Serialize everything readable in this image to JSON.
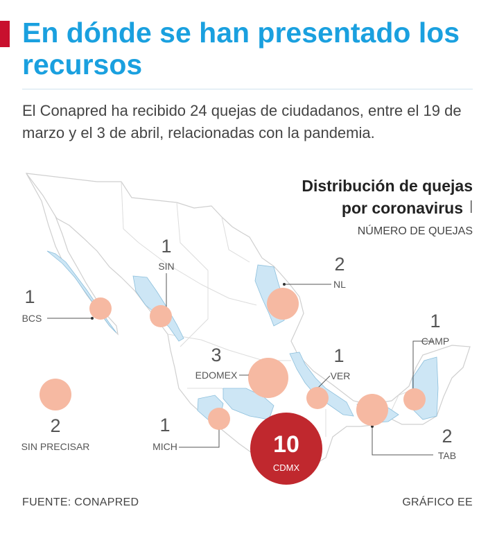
{
  "header": {
    "title": "En dónde se han presentado los recursos",
    "subtitle": "El Conapred ha recibido 24 quejas de ciudadanos, entre el 19 de marzo y el 3 de abril, relacionadas con la pandemia."
  },
  "map": {
    "legend_title_line1": "Distribución de quejas",
    "legend_title_line2": "por coronavirus",
    "legend_subtitle": "NÚMERO DE QUEJAS",
    "states": [
      {
        "id": "bcs",
        "label": "BCS",
        "count": "1"
      },
      {
        "id": "sin",
        "label": "SIN",
        "count": "1"
      },
      {
        "id": "nl",
        "label": "NL",
        "count": "2"
      },
      {
        "id": "camp",
        "label": "CAMP",
        "count": "1"
      },
      {
        "id": "edomex",
        "label": "EDOMEX",
        "count": "3"
      },
      {
        "id": "ver",
        "label": "VER",
        "count": "1"
      },
      {
        "id": "mich",
        "label": "MICH",
        "count": "1"
      },
      {
        "id": "tab",
        "label": "TAB",
        "count": "2"
      },
      {
        "id": "cdmx",
        "label": "CDMX",
        "count": "10"
      },
      {
        "id": "sin_precisar",
        "label": "SIN PRECISAR",
        "count": "2"
      }
    ],
    "colors": {
      "highlight_state": "#cde6f5",
      "bubble": "#f6b9a2",
      "cdmx_bubble": "#c0282e",
      "title_blue": "#1aa0df",
      "accent_red": "#c8102e"
    }
  },
  "footer": {
    "source": "FUENTE: CONAPRED",
    "credit": "GRÁFICO EE"
  }
}
